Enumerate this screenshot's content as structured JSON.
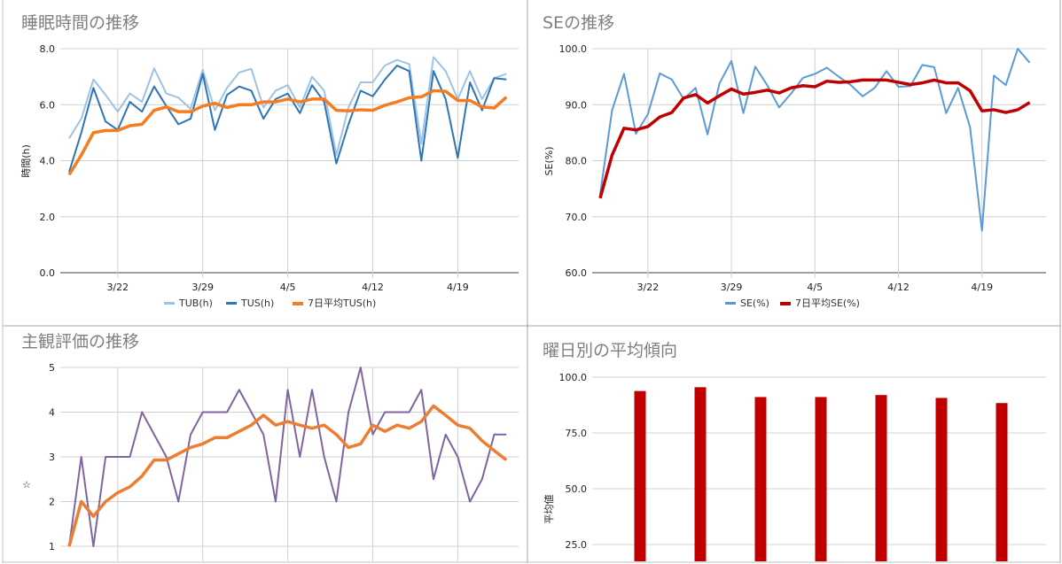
{
  "chart_data": [
    {
      "type": "line",
      "title": "睡眠時間の推移",
      "ylabel": "時間(h)",
      "xlabel": "",
      "ylim": [
        0,
        8
      ],
      "yticks": [
        "0.0",
        "2.0",
        "4.0",
        "6.0",
        "8.0"
      ],
      "xticks": [
        "3/22",
        "3/29",
        "4/5",
        "4/12",
        "4/19"
      ],
      "grid": true,
      "legend": "bottom",
      "x": [
        "3/18",
        "3/19",
        "3/20",
        "3/21",
        "3/22",
        "3/23",
        "3/24",
        "3/25",
        "3/26",
        "3/27",
        "3/28",
        "3/29",
        "3/30",
        "3/31",
        "4/1",
        "4/2",
        "4/3",
        "4/4",
        "4/5",
        "4/6",
        "4/7",
        "4/8",
        "4/9",
        "4/10",
        "4/11",
        "4/12",
        "4/13",
        "4/14",
        "4/15",
        "4/16",
        "4/17",
        "4/18",
        "4/19",
        "4/20",
        "4/21",
        "4/22",
        "4/23"
      ],
      "series": [
        {
          "name": "TUB(h)",
          "color": "#9DC3E6",
          "width": 2,
          "values": [
            4.8,
            5.5,
            6.9,
            6.35,
            5.75,
            6.4,
            6.1,
            7.3,
            6.4,
            6.25,
            5.85,
            7.25,
            5.8,
            6.6,
            7.15,
            7.28,
            5.9,
            6.5,
            6.7,
            5.9,
            7.0,
            6.5,
            4.2,
            5.9,
            6.8,
            6.8,
            7.4,
            7.6,
            7.45,
            4.6,
            7.7,
            7.2,
            6.2,
            7.2,
            6.2,
            6.95,
            7.1
          ]
        },
        {
          "name": "TUS(h)",
          "color": "#2E75B6",
          "width": 2,
          "values": [
            3.6,
            5.0,
            6.6,
            5.4,
            5.1,
            6.1,
            5.75,
            6.65,
            5.95,
            5.3,
            5.5,
            7.1,
            5.1,
            6.35,
            6.65,
            6.5,
            5.5,
            6.2,
            6.4,
            5.7,
            6.7,
            6.1,
            3.9,
            5.3,
            6.5,
            6.3,
            6.9,
            7.4,
            7.2,
            4.0,
            7.2,
            6.2,
            4.1,
            6.8,
            5.8,
            6.95,
            6.9
          ]
        },
        {
          "name": "7日平均TUS(h)",
          "color": "#F57C1F",
          "width": 3.5,
          "values": [
            3.5,
            4.2,
            5.0,
            5.08,
            5.08,
            5.25,
            5.3,
            5.8,
            5.92,
            5.75,
            5.75,
            5.95,
            6.05,
            5.9,
            6.0,
            6.0,
            6.1,
            6.1,
            6.2,
            6.1,
            6.2,
            6.2,
            5.8,
            5.78,
            5.82,
            5.8,
            5.98,
            6.1,
            6.25,
            6.28,
            6.5,
            6.48,
            6.15,
            6.15,
            5.92,
            5.88,
            6.27
          ]
        }
      ]
    },
    {
      "type": "line",
      "title": "SEの推移",
      "ylabel": "SE(%)",
      "xlabel": "",
      "ylim": [
        60,
        100
      ],
      "yticks": [
        "60.0",
        "70.0",
        "80.0",
        "90.0",
        "100.0"
      ],
      "xticks": [
        "3/22",
        "3/29",
        "4/5",
        "4/12",
        "4/19"
      ],
      "grid": true,
      "legend": "bottom",
      "x": [
        "3/18",
        "3/19",
        "3/20",
        "3/21",
        "3/22",
        "3/23",
        "3/24",
        "3/25",
        "3/26",
        "3/27",
        "3/28",
        "3/29",
        "3/30",
        "3/31",
        "4/1",
        "4/2",
        "4/3",
        "4/4",
        "4/5",
        "4/6",
        "4/7",
        "4/8",
        "4/9",
        "4/10",
        "4/11",
        "4/12",
        "4/13",
        "4/14",
        "4/15",
        "4/16",
        "4/17",
        "4/18",
        "4/19",
        "4/20",
        "4/21",
        "4/22",
        "4/23"
      ],
      "series": [
        {
          "name": "SE(%)",
          "color": "#5B9BD5",
          "width": 2,
          "values": [
            74,
            89,
            95.5,
            84.8,
            88.3,
            95.6,
            94.5,
            91,
            93,
            84.7,
            93.8,
            97.8,
            88.5,
            96.8,
            93.5,
            89.5,
            92,
            94.8,
            95.5,
            96.6,
            95,
            93.5,
            91.5,
            93,
            96,
            93.2,
            93.3,
            97.1,
            96.7,
            88.5,
            93,
            86,
            67.5,
            95.2,
            93.5,
            100,
            97.5
          ]
        },
        {
          "name": "7日平均SE(%)",
          "color": "#C00000",
          "width": 3.5,
          "values": [
            73.3,
            81,
            85.8,
            85.5,
            86.1,
            87.8,
            88.6,
            91.2,
            91.8,
            90.3,
            91.6,
            92.8,
            91.9,
            92.2,
            92.6,
            92.1,
            93.0,
            93.4,
            93.2,
            94.2,
            94.0,
            94.1,
            94.4,
            94.4,
            94.4,
            94.0,
            93.6,
            93.9,
            94.4,
            93.9,
            93.9,
            92.5,
            88.9,
            89.1,
            88.6,
            89.1,
            90.4
          ]
        }
      ]
    },
    {
      "type": "line",
      "title": "主観評価の推移",
      "ylabel": "☆",
      "xlabel": "",
      "ylim": [
        1,
        5
      ],
      "yticks": [
        "1",
        "2",
        "3",
        "4",
        "5"
      ],
      "grid": true,
      "x": [
        "3/18",
        "3/19",
        "3/20",
        "3/21",
        "3/22",
        "3/23",
        "3/24",
        "3/25",
        "3/26",
        "3/27",
        "3/28",
        "3/29",
        "3/30",
        "3/31",
        "4/1",
        "4/2",
        "4/3",
        "4/4",
        "4/5",
        "4/6",
        "4/7",
        "4/8",
        "4/9",
        "4/10",
        "4/11",
        "4/12",
        "4/13",
        "4/14",
        "4/15",
        "4/16",
        "4/17",
        "4/18",
        "4/19",
        "4/20",
        "4/21",
        "4/22",
        "4/23"
      ],
      "series": [
        {
          "color": "#8064A2",
          "width": 2,
          "values": [
            1,
            3,
            1,
            3,
            3,
            3,
            4,
            3.5,
            3,
            2,
            3.5,
            4,
            4,
            4,
            4.5,
            4,
            3.5,
            2,
            4.5,
            3,
            4.5,
            3,
            2,
            4,
            5,
            3.5,
            4,
            4,
            4,
            4.5,
            2.5,
            3.5,
            3,
            2,
            2.5,
            3.5,
            3.5
          ]
        },
        {
          "color": "#ED7D31",
          "width": 3.5,
          "values": [
            1,
            2,
            1.67,
            2,
            2.2,
            2.33,
            2.57,
            2.93,
            2.93,
            3.07,
            3.21,
            3.29,
            3.43,
            3.43,
            3.57,
            3.71,
            3.93,
            3.71,
            3.79,
            3.71,
            3.64,
            3.71,
            3.5,
            3.21,
            3.29,
            3.71,
            3.57,
            3.71,
            3.64,
            3.79,
            4.14,
            3.93,
            3.71,
            3.64,
            3.36,
            3.14,
            2.93
          ]
        }
      ]
    },
    {
      "type": "bar",
      "title": "曜日別の平均傾向",
      "ylabel": "平均値",
      "xlabel": "",
      "ylim": [
        0,
        100
      ],
      "yticks": [
        "25.0",
        "50.0",
        "75.0",
        "100.0"
      ],
      "grid": true,
      "color": "#C00000",
      "values": [
        93.8,
        95.5,
        91.1,
        91.1,
        92.0,
        90.7,
        88.4
      ]
    }
  ]
}
